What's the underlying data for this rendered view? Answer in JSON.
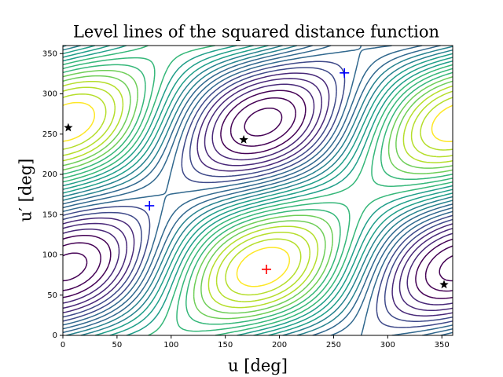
{
  "chart_data": {
    "type": "contour",
    "title": "Level lines of the squared distance function",
    "xlabel": "u [deg]",
    "ylabel": "u′ [deg]",
    "xlim": [
      0,
      360
    ],
    "ylim": [
      0,
      360
    ],
    "xticks": [
      0,
      50,
      100,
      150,
      200,
      250,
      300,
      350
    ],
    "yticks": [
      0,
      50,
      100,
      150,
      200,
      250,
      300,
      350
    ],
    "series": [
      {
        "color": "#0000ff",
        "marker": "plus",
        "x": [
          80,
          260
        ],
        "y": [
          161,
          326
        ]
      },
      {
        "color": "#ff0000",
        "marker": "plus",
        "x": [
          188
        ],
        "y": [
          82
        ]
      },
      {
        "color": "#000000",
        "marker": "star",
        "x": [
          5,
          167,
          352
        ],
        "y": [
          258,
          243,
          63
        ]
      }
    ]
  }
}
